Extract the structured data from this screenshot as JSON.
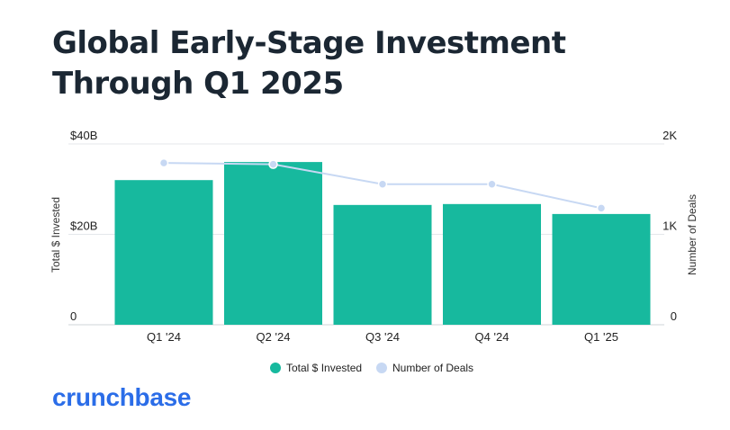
{
  "chart_data": {
    "type": "bar+line",
    "title": "Global Early-Stage Investment Through Q1 2025",
    "categories": [
      "Q1 '24",
      "Q2 '24",
      "Q3 '24",
      "Q4 '24",
      "Q1 '25"
    ],
    "series": [
      {
        "name": "Total $ Invested",
        "type": "bar",
        "axis": "left",
        "values": [
          32,
          36,
          26.5,
          26.7,
          24.5
        ],
        "color": "#17b99e"
      },
      {
        "name": "Number of Deals",
        "type": "line",
        "axis": "right",
        "values": [
          1790,
          1775,
          1555,
          1555,
          1290
        ],
        "color": "#c7d8f3"
      }
    ],
    "y_left": {
      "label": "Total $ Invested",
      "ylim": [
        0,
        40
      ],
      "ticks": [
        0,
        20,
        40
      ],
      "tick_labels": [
        "0",
        "$20B",
        "$40B"
      ]
    },
    "y_right": {
      "label": "Number of Deals",
      "ylim": [
        0,
        2000
      ],
      "ticks": [
        0,
        1000,
        2000
      ],
      "tick_labels": [
        "0",
        "1K",
        "2K"
      ]
    },
    "grid": true,
    "legend": "bottom-center"
  },
  "brand": {
    "logo_text": "crunchbase",
    "color": "#2b6de8"
  },
  "colors": {
    "title": "#1b2733",
    "grid": "#e4e7eb"
  }
}
